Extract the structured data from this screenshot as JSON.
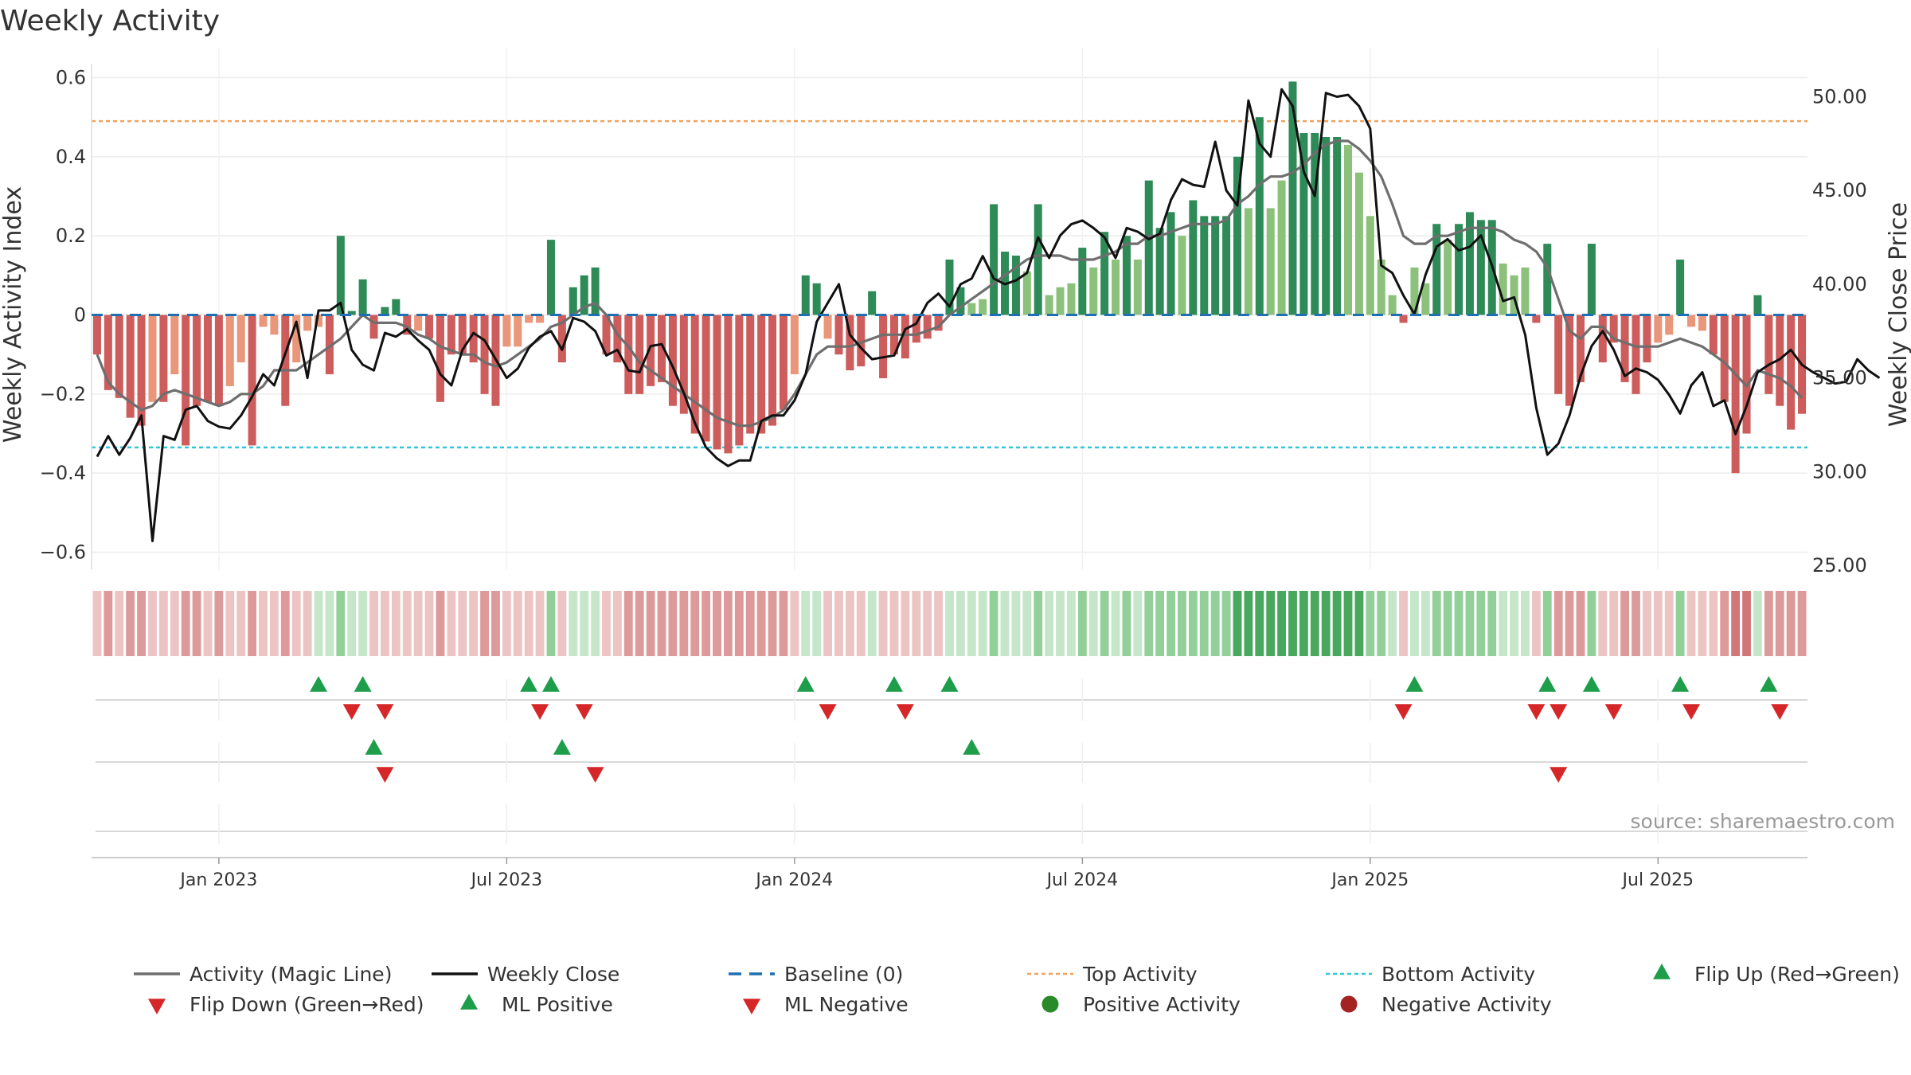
{
  "chart_data": {
    "type": "bar",
    "title": "Weekly Activity",
    "ylabel": "Weekly Activity Index",
    "y2label": "Weekly Close Price",
    "ylim": [
      -0.64,
      0.6
    ],
    "y2lim": [
      25.0,
      51.0
    ],
    "y_ticks": [
      "0.6",
      "0.4",
      "0.2",
      "0",
      "−0.2",
      "−0.4",
      "−0.6"
    ],
    "y_tick_values": [
      0.6,
      0.4,
      0.2,
      0,
      -0.2,
      -0.4,
      -0.6
    ],
    "y2_ticks": [
      "50.00",
      "45.00",
      "40.00",
      "35.00",
      "30.00",
      "25.00"
    ],
    "y2_tick_values": [
      50,
      45,
      40,
      35,
      30,
      25
    ],
    "x_ticks": [
      "Jan 2023",
      "Jul 2023",
      "Jan 2024",
      "Jul 2024",
      "Jan 2025",
      "Jul 2025"
    ],
    "x_tick_weeks": [
      11,
      37,
      63,
      89,
      115,
      141
    ],
    "top_activity": 0.49,
    "bottom_activity": -0.335,
    "activity": [
      -0.1,
      -0.19,
      -0.21,
      -0.26,
      -0.28,
      -0.22,
      -0.22,
      -0.15,
      -0.33,
      -0.23,
      -0.22,
      -0.23,
      -0.18,
      -0.12,
      -0.33,
      -0.03,
      -0.05,
      -0.23,
      -0.12,
      -0.04,
      -0.03,
      -0.15,
      0.2,
      0.01,
      0.09,
      -0.06,
      0.02,
      0.04,
      -0.05,
      -0.04,
      -0.06,
      -0.22,
      -0.1,
      -0.1,
      -0.12,
      -0.2,
      -0.23,
      -0.08,
      -0.08,
      -0.02,
      -0.02,
      0.19,
      -0.12,
      0.07,
      0.1,
      0.12,
      -0.1,
      -0.12,
      -0.2,
      -0.2,
      -0.18,
      -0.17,
      -0.23,
      -0.25,
      -0.3,
      -0.32,
      -0.34,
      -0.35,
      -0.33,
      -0.3,
      -0.3,
      -0.28,
      -0.24,
      -0.15,
      0.1,
      0.08,
      -0.06,
      -0.1,
      -0.14,
      -0.13,
      0.06,
      -0.16,
      -0.1,
      -0.11,
      -0.07,
      -0.06,
      -0.04,
      0.14,
      0.07,
      0.03,
      0.04,
      0.28,
      0.16,
      0.15,
      0.11,
      0.28,
      0.05,
      0.07,
      0.08,
      0.17,
      0.12,
      0.21,
      0.14,
      0.2,
      0.14,
      0.34,
      0.22,
      0.26,
      0.2,
      0.29,
      0.25,
      0.25,
      0.25,
      0.4,
      0.27,
      0.5,
      0.27,
      0.34,
      0.59,
      0.46,
      0.46,
      0.45,
      0.45,
      0.43,
      0.36,
      0.25,
      0.14,
      0.05,
      -0.02,
      0.12,
      0.08,
      0.23,
      0.19,
      0.23,
      0.26,
      0.24,
      0.24,
      0.13,
      0.1,
      0.12,
      -0.02,
      0.18,
      -0.2,
      -0.23,
      -0.17,
      0.18,
      -0.12,
      -0.07,
      -0.17,
      -0.2,
      -0.12,
      -0.07,
      -0.05,
      0.14,
      -0.03,
      -0.04,
      -0.1,
      -0.22,
      -0.4,
      -0.3,
      0.05,
      -0.2,
      -0.23,
      -0.29,
      -0.25
    ],
    "magic_line": [
      -0.1,
      -0.17,
      -0.2,
      -0.22,
      -0.24,
      -0.23,
      -0.2,
      -0.19,
      -0.2,
      -0.21,
      -0.22,
      -0.23,
      -0.22,
      -0.2,
      -0.2,
      -0.18,
      -0.14,
      -0.14,
      -0.14,
      -0.12,
      -0.1,
      -0.08,
      -0.06,
      -0.03,
      0.0,
      -0.02,
      -0.02,
      -0.02,
      -0.03,
      -0.05,
      -0.06,
      -0.08,
      -0.09,
      -0.1,
      -0.1,
      -0.12,
      -0.13,
      -0.12,
      -0.1,
      -0.08,
      -0.06,
      -0.03,
      -0.02,
      0.0,
      0.02,
      0.03,
      0.0,
      -0.05,
      -0.08,
      -0.12,
      -0.14,
      -0.16,
      -0.18,
      -0.2,
      -0.22,
      -0.24,
      -0.26,
      -0.27,
      -0.28,
      -0.28,
      -0.27,
      -0.26,
      -0.24,
      -0.2,
      -0.15,
      -0.1,
      -0.08,
      -0.08,
      -0.08,
      -0.07,
      -0.06,
      -0.05,
      -0.05,
      -0.05,
      -0.05,
      -0.04,
      -0.03,
      0.0,
      0.02,
      0.04,
      0.06,
      0.08,
      0.1,
      0.12,
      0.14,
      0.15,
      0.15,
      0.15,
      0.14,
      0.14,
      0.14,
      0.15,
      0.16,
      0.18,
      0.18,
      0.2,
      0.2,
      0.21,
      0.22,
      0.23,
      0.23,
      0.23,
      0.24,
      0.28,
      0.3,
      0.33,
      0.35,
      0.35,
      0.36,
      0.38,
      0.41,
      0.43,
      0.44,
      0.44,
      0.42,
      0.39,
      0.35,
      0.28,
      0.2,
      0.18,
      0.18,
      0.2,
      0.2,
      0.21,
      0.22,
      0.22,
      0.22,
      0.21,
      0.19,
      0.18,
      0.16,
      0.12,
      0.04,
      -0.04,
      -0.06,
      -0.03,
      -0.03,
      -0.06,
      -0.07,
      -0.08,
      -0.08,
      -0.08,
      -0.07,
      -0.06,
      -0.07,
      -0.08,
      -0.1,
      -0.12,
      -0.15,
      -0.18,
      -0.14,
      -0.15,
      -0.16,
      -0.18,
      -0.21
    ],
    "weekly_close": [
      30.8,
      31.9,
      30.9,
      31.8,
      33.0,
      26.3,
      31.9,
      31.7,
      33.3,
      33.5,
      32.7,
      32.4,
      32.3,
      33.0,
      34.0,
      35.2,
      34.6,
      36.3,
      38.0,
      35.0,
      38.6,
      38.6,
      39.0,
      36.5,
      35.7,
      35.4,
      37.4,
      37.2,
      37.6,
      37.0,
      36.5,
      35.2,
      34.6,
      36.5,
      37.4,
      37.0,
      36.0,
      35.0,
      35.5,
      36.6,
      37.2,
      37.5,
      36.5,
      38.2,
      38.0,
      37.5,
      36.2,
      36.5,
      35.4,
      35.3,
      36.7,
      36.8,
      35.6,
      34.2,
      32.6,
      31.3,
      30.7,
      30.3,
      30.6,
      30.6,
      32.7,
      33.0,
      33.0,
      33.8,
      35.2,
      38.0,
      39.0,
      40.0,
      37.3,
      36.6,
      36.0,
      36.1,
      36.2,
      37.6,
      37.9,
      39.0,
      39.5,
      38.8,
      40.0,
      40.3,
      41.5,
      40.3,
      40.0,
      40.2,
      40.6,
      42.5,
      41.4,
      42.6,
      43.2,
      43.4,
      43.0,
      42.5,
      41.4,
      43.0,
      42.8,
      42.4,
      42.7,
      44.5,
      45.6,
      45.3,
      45.2,
      47.6,
      45.0,
      44.2,
      49.8,
      47.5,
      46.8,
      50.4,
      49.5,
      46.0,
      44.7,
      50.2,
      50.0,
      50.1,
      49.5,
      48.3,
      41.0,
      40.6,
      39.4,
      38.4,
      40.5,
      42.0,
      42.4,
      41.8,
      42.0,
      42.6,
      41.0,
      39.1,
      39.3,
      37.3,
      33.4,
      30.9,
      31.5,
      33.0,
      35.1,
      36.7,
      37.5,
      36.5,
      35.1,
      35.5,
      35.3,
      34.9,
      34.1,
      33.1,
      34.6,
      35.3,
      33.5,
      33.8,
      32.0,
      33.5,
      35.3,
      35.7,
      36.0,
      36.5,
      35.7,
      35.3,
      35.0,
      34.7,
      34.8,
      36.0,
      35.4,
      35.0
    ],
    "heat_levels": [
      -1,
      -2,
      -1,
      -2,
      -2,
      -1,
      -1,
      -1,
      -2,
      -2,
      -1,
      -2,
      -1,
      -1,
      -2,
      -1,
      -1,
      -2,
      -1,
      -1,
      1,
      1,
      2,
      1,
      1,
      -1,
      -1,
      -1,
      -1,
      -1,
      -1,
      -2,
      -1,
      -1,
      -1,
      -2,
      -2,
      -1,
      -1,
      -1,
      -1,
      2,
      -1,
      1,
      1,
      1,
      -1,
      -1,
      -2,
      -2,
      -2,
      -2,
      -2,
      -2,
      -2,
      -2,
      -2,
      -2,
      -2,
      -2,
      -2,
      -2,
      -2,
      -1,
      1,
      1,
      -1,
      -1,
      -1,
      -1,
      1,
      -1,
      -1,
      -1,
      -1,
      -1,
      -1,
      1,
      1,
      1,
      1,
      2,
      1,
      1,
      1,
      2,
      1,
      1,
      1,
      2,
      1,
      2,
      1,
      2,
      1,
      2,
      2,
      2,
      2,
      2,
      2,
      2,
      2,
      3,
      3,
      3,
      3,
      3,
      3,
      3,
      3,
      3,
      3,
      3,
      3,
      2,
      2,
      1,
      -1,
      1,
      1,
      2,
      2,
      2,
      2,
      2,
      2,
      1,
      1,
      1,
      -1,
      2,
      -2,
      -2,
      -2,
      2,
      -1,
      -1,
      -2,
      -2,
      -1,
      -1,
      -1,
      2,
      -1,
      -1,
      -1,
      -2,
      -3,
      -3,
      1,
      -2,
      -2,
      -2,
      -2
    ],
    "flip_up_weeks": [
      20,
      24,
      39,
      41,
      64,
      72,
      77,
      119,
      131,
      135,
      143,
      151
    ],
    "flip_down_weeks": [
      23,
      26,
      40,
      44,
      66,
      73,
      118,
      130,
      132,
      137,
      144,
      152
    ],
    "ml_positive_weeks": [
      25,
      42,
      79
    ],
    "ml_negative_weeks": [
      26,
      45,
      132
    ],
    "colors": {
      "strong_green": "#2e8b57",
      "light_green": "#8cc17c",
      "strong_red": "#cd5c5c",
      "light_red": "#e9967a",
      "magic_line": "#6e6e6e",
      "weekly_close": "#111111",
      "baseline": "#1f6fb2",
      "top_activity": "#f0a35e",
      "bottom_activity": "#32c8d6",
      "flip_up": "#1e9d4a",
      "flip_down": "#d62728"
    },
    "legend": [
      {
        "label": "Activity (Magic Line)",
        "kind": "line",
        "color": "#6e6e6e"
      },
      {
        "label": "Weekly Close",
        "kind": "line",
        "color": "#111111"
      },
      {
        "label": "Baseline (0)",
        "kind": "dash",
        "color": "#1f6fb2"
      },
      {
        "label": "Top Activity",
        "kind": "dot",
        "color": "#f0a35e"
      },
      {
        "label": "Bottom Activity",
        "kind": "dot",
        "color": "#32c8d6"
      },
      {
        "label": "Flip Up (Red→Green)",
        "kind": "up",
        "color": "#1e9d4a"
      },
      {
        "label": "Flip Down (Green→Red)",
        "kind": "down",
        "color": "#d62728"
      },
      {
        "label": "ML Positive",
        "kind": "up",
        "color": "#1e9d4a"
      },
      {
        "label": "ML Negative",
        "kind": "down",
        "color": "#d62728"
      },
      {
        "label": "Positive Activity",
        "kind": "circle",
        "color": "#2a8a2a"
      },
      {
        "label": "Negative Activity",
        "kind": "circle",
        "color": "#a52222"
      }
    ],
    "source": "source: sharemaestro.com"
  }
}
